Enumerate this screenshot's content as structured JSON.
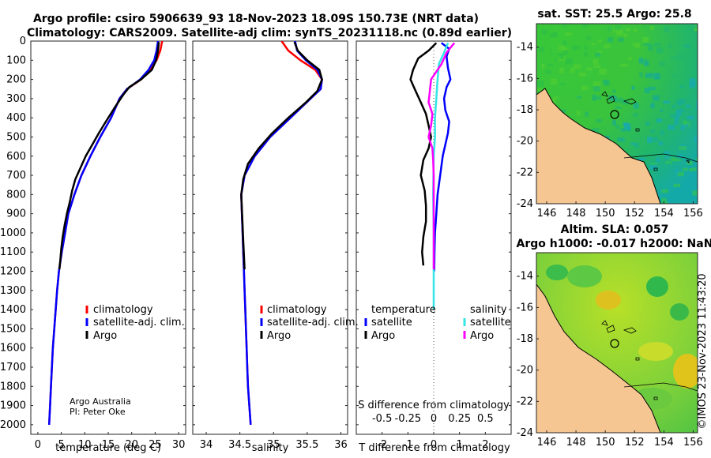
{
  "title": {
    "line1": "Argo profile: csiro 5906639_93 18-Nov-2023 18.09S 150.73E (NRT data)",
    "line2": "Climatology: CARS2009. Satellite-adj clim: synTS_20231118.nc (0.89d earlier)"
  },
  "credit": {
    "line1": "Argo Australia",
    "line2": "PI: Peter Oke"
  },
  "watermark": "©IMOS 23-Nov-2023 11:43:20",
  "colors": {
    "climatology": "#ff0000",
    "satellite": "#0000ff",
    "argo": "#000000",
    "satellite_s": "#33e6e6",
    "argo_s": "#ff00ff",
    "land": "#f5c592"
  },
  "chart_data": [
    {
      "type": "line",
      "id": "temperature",
      "xlabel": "temperature (deg C)",
      "ylabel": "",
      "xlim": [
        -1.5,
        31.5
      ],
      "ylim": [
        0,
        2050
      ],
      "xticks": [
        "0",
        "5",
        "10",
        "15",
        "20",
        "25",
        "30"
      ],
      "yticks": [
        "0",
        "100",
        "200",
        "300",
        "400",
        "500",
        "600",
        "700",
        "800",
        "900",
        "1000",
        "1100",
        "1200",
        "1300",
        "1400",
        "1500",
        "1600",
        "1700",
        "1800",
        "1900",
        "2000"
      ],
      "legend": [
        "climatology",
        "satellite-adj. clim.",
        "Argo"
      ],
      "series": [
        {
          "name": "climatology",
          "color": "#ff0000",
          "points": [
            [
              26.5,
              0
            ],
            [
              26.1,
              50
            ],
            [
              25.3,
              100
            ],
            [
              24.0,
              150
            ],
            [
              22.0,
              200
            ],
            [
              19.0,
              250
            ],
            [
              17.4,
              300
            ],
            [
              15.6,
              400
            ],
            [
              13.3,
              500
            ],
            [
              11.2,
              600
            ],
            [
              9.3,
              700
            ],
            [
              7.8,
              800
            ],
            [
              6.5,
              900
            ],
            [
              5.8,
              1000
            ],
            [
              5.1,
              1100
            ],
            [
              4.5,
              1200
            ],
            [
              4.1,
              1300
            ],
            [
              3.8,
              1400
            ],
            [
              3.5,
              1500
            ],
            [
              3.2,
              1600
            ],
            [
              3.0,
              1700
            ],
            [
              2.8,
              1800
            ],
            [
              2.6,
              1900
            ],
            [
              2.4,
              2000
            ]
          ]
        },
        {
          "name": "satellite-adj. clim.",
          "color": "#0000ff",
          "points": [
            [
              25.6,
              0
            ],
            [
              25.3,
              50
            ],
            [
              24.8,
              100
            ],
            [
              23.6,
              150
            ],
            [
              21.8,
              200
            ],
            [
              19.0,
              250
            ],
            [
              17.4,
              300
            ],
            [
              15.6,
              400
            ],
            [
              13.3,
              500
            ],
            [
              11.2,
              600
            ],
            [
              9.3,
              700
            ],
            [
              7.8,
              800
            ],
            [
              6.5,
              900
            ],
            [
              5.8,
              1000
            ],
            [
              5.1,
              1100
            ],
            [
              4.5,
              1200
            ],
            [
              4.1,
              1300
            ],
            [
              3.8,
              1400
            ],
            [
              3.5,
              1500
            ],
            [
              3.2,
              1600
            ],
            [
              3.0,
              1700
            ],
            [
              2.8,
              1800
            ],
            [
              2.6,
              1900
            ],
            [
              2.4,
              2000
            ]
          ]
        },
        {
          "name": "Argo",
          "color": "#000000",
          "points": [
            [
              25.8,
              5
            ],
            [
              25.6,
              50
            ],
            [
              25.2,
              100
            ],
            [
              24.3,
              150
            ],
            [
              22.0,
              200
            ],
            [
              19.5,
              240
            ],
            [
              18.2,
              280
            ],
            [
              16.3,
              350
            ],
            [
              14.5,
              420
            ],
            [
              13.0,
              480
            ],
            [
              11.6,
              540
            ],
            [
              10.2,
              600
            ],
            [
              9.1,
              660
            ],
            [
              8.0,
              720
            ],
            [
              7.3,
              780
            ],
            [
              6.8,
              840
            ],
            [
              6.2,
              900
            ],
            [
              5.7,
              960
            ],
            [
              5.3,
              1020
            ],
            [
              5.0,
              1080
            ],
            [
              4.8,
              1140
            ],
            [
              4.6,
              1190
            ]
          ]
        }
      ]
    },
    {
      "type": "line",
      "id": "salinity",
      "xlabel": "salinity",
      "ylabel": "",
      "xlim": [
        33.8,
        36.1
      ],
      "ylim": [
        0,
        2050
      ],
      "xticks": [
        "34",
        "34.5",
        "35",
        "35.5",
        "36"
      ],
      "legend": [
        "climatology",
        "satellite-adj. clim.",
        "Argo"
      ],
      "series": [
        {
          "name": "climatology",
          "color": "#ff0000",
          "points": [
            [
              35.12,
              0
            ],
            [
              35.22,
              50
            ],
            [
              35.4,
              100
            ],
            [
              35.62,
              150
            ],
            [
              35.72,
              200
            ],
            [
              35.7,
              250
            ],
            [
              35.55,
              300
            ],
            [
              35.25,
              400
            ],
            [
              34.95,
              500
            ],
            [
              34.72,
              600
            ],
            [
              34.57,
              700
            ],
            [
              34.52,
              800
            ],
            [
              34.53,
              900
            ],
            [
              34.54,
              1000
            ],
            [
              34.55,
              1100
            ],
            [
              34.56,
              1200
            ],
            [
              34.57,
              1300
            ],
            [
              34.58,
              1400
            ],
            [
              34.59,
              1500
            ],
            [
              34.6,
              1600
            ],
            [
              34.61,
              1700
            ],
            [
              34.62,
              1800
            ],
            [
              34.64,
              1900
            ],
            [
              34.66,
              2000
            ]
          ]
        },
        {
          "name": "satellite-adj. clim.",
          "color": "#0000ff",
          "points": [
            [
              35.32,
              0
            ],
            [
              35.35,
              50
            ],
            [
              35.48,
              100
            ],
            [
              35.65,
              150
            ],
            [
              35.72,
              200
            ],
            [
              35.7,
              250
            ],
            [
              35.55,
              300
            ],
            [
              35.25,
              400
            ],
            [
              34.95,
              500
            ],
            [
              34.72,
              600
            ],
            [
              34.57,
              700
            ],
            [
              34.52,
              800
            ],
            [
              34.53,
              900
            ],
            [
              34.54,
              1000
            ],
            [
              34.55,
              1100
            ],
            [
              34.56,
              1200
            ],
            [
              34.57,
              1300
            ],
            [
              34.58,
              1400
            ],
            [
              34.59,
              1500
            ],
            [
              34.6,
              1600
            ],
            [
              34.61,
              1700
            ],
            [
              34.62,
              1800
            ],
            [
              34.64,
              1900
            ],
            [
              34.66,
              2000
            ]
          ]
        },
        {
          "name": "Argo",
          "color": "#000000",
          "points": [
            [
              35.31,
              5
            ],
            [
              35.36,
              50
            ],
            [
              35.5,
              100
            ],
            [
              35.68,
              150
            ],
            [
              35.72,
              200
            ],
            [
              35.65,
              260
            ],
            [
              35.48,
              320
            ],
            [
              35.22,
              400
            ],
            [
              34.98,
              480
            ],
            [
              34.78,
              560
            ],
            [
              34.62,
              640
            ],
            [
              34.55,
              720
            ],
            [
              34.52,
              800
            ],
            [
              34.53,
              880
            ],
            [
              34.54,
              960
            ],
            [
              34.55,
              1040
            ],
            [
              34.56,
              1120
            ],
            [
              34.57,
              1190
            ]
          ]
        }
      ]
    },
    {
      "type": "line",
      "id": "difference",
      "xlabel": "T difference from climatology",
      "xlabel2": "S difference from climatology",
      "xlim": [
        -3,
        3
      ],
      "ylim": [
        0,
        2050
      ],
      "xticks": [
        "-2",
        "-1",
        "0",
        "1",
        "2"
      ],
      "xticks_s": [
        "-0.5",
        "-0.25",
        "0",
        "0.25",
        "0.5"
      ],
      "legend_t_header": "temperature",
      "legend_s_header": "salinity",
      "legend_t": [
        "satellite",
        "Argo"
      ],
      "legend_s": [
        "satellite",
        "Argo"
      ],
      "series": [
        {
          "name": "T satellite",
          "color": "#0000ff",
          "points": [
            [
              0.3,
              10
            ],
            [
              0.6,
              40
            ],
            [
              0.5,
              80
            ],
            [
              0.55,
              140
            ],
            [
              0.65,
              200
            ],
            [
              0.5,
              240
            ],
            [
              0.4,
              300
            ],
            [
              0.45,
              360
            ],
            [
              0.6,
              420
            ],
            [
              0.55,
              480
            ],
            [
              0.45,
              540
            ],
            [
              0.35,
              600
            ],
            [
              0.25,
              700
            ],
            [
              0.15,
              800
            ],
            [
              0.1,
              900
            ],
            [
              0.05,
              1000
            ],
            [
              0.03,
              1100
            ],
            [
              0.02,
              1200
            ]
          ]
        },
        {
          "name": "T Argo",
          "color": "#000000",
          "points": [
            [
              0.1,
              10
            ],
            [
              -0.2,
              50
            ],
            [
              -0.6,
              90
            ],
            [
              -0.8,
              150
            ],
            [
              -0.9,
              200
            ],
            [
              -0.7,
              260
            ],
            [
              -0.5,
              320
            ],
            [
              -0.3,
              380
            ],
            [
              -0.2,
              440
            ],
            [
              -0.1,
              500
            ],
            [
              -0.2,
              560
            ],
            [
              -0.4,
              620
            ],
            [
              -0.5,
              700
            ],
            [
              -0.35,
              780
            ],
            [
              -0.3,
              860
            ],
            [
              -0.3,
              940
            ],
            [
              -0.4,
              1020
            ],
            [
              -0.45,
              1100
            ],
            [
              -0.4,
              1170
            ]
          ]
        },
        {
          "name": "S satellite",
          "color": "#33e6e6",
          "points": [
            [
              0.55,
              10
            ],
            [
              0.4,
              60
            ],
            [
              0.2,
              120
            ],
            [
              0.15,
              200
            ],
            [
              0.1,
              300
            ],
            [
              0.05,
              400
            ],
            [
              0.05,
              500
            ],
            [
              0.0,
              600
            ],
            [
              -0.02,
              800
            ],
            [
              0.0,
              1000
            ],
            [
              0.0,
              1200
            ],
            [
              0.0,
              1400
            ]
          ]
        },
        {
          "name": "S Argo",
          "color": "#ff00ff",
          "points": [
            [
              0.8,
              10
            ],
            [
              0.5,
              60
            ],
            [
              0.3,
              120
            ],
            [
              -0.1,
              200
            ],
            [
              -0.15,
              260
            ],
            [
              -0.2,
              320
            ],
            [
              -0.05,
              380
            ],
            [
              -0.1,
              440
            ],
            [
              -0.2,
              500
            ],
            [
              -0.05,
              560
            ],
            [
              -0.02,
              620
            ],
            [
              0.0,
              700
            ],
            [
              0.0,
              900
            ],
            [
              0.0,
              1100
            ],
            [
              0.0,
              1190
            ]
          ]
        }
      ]
    },
    {
      "type": "heatmap",
      "id": "sst_map",
      "title": "sat. SST: 25.5 Argo: 25.8",
      "xticks": [
        "146",
        "148",
        "150",
        "152",
        "154",
        "156"
      ],
      "yticks": [
        "-14",
        "-16",
        "-18",
        "-20",
        "-22",
        "-24"
      ],
      "xlim": [
        145.3,
        156.3
      ],
      "ylim": [
        -24,
        -12.5
      ]
    },
    {
      "type": "heatmap",
      "id": "sla_map",
      "title1": "Altim. SLA: 0.057",
      "title2": "Argo h1000: -0.017 h2000: NaN",
      "xticks": [
        "146",
        "148",
        "150",
        "152",
        "154",
        "156"
      ],
      "yticks": [
        "-14",
        "-16",
        "-18",
        "-20",
        "-22",
        "-24"
      ],
      "xlim": [
        145.3,
        156.3
      ],
      "ylim": [
        -24,
        -12.5
      ]
    }
  ]
}
